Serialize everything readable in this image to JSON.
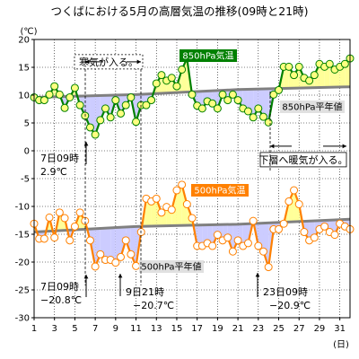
{
  "chart_data": {
    "type": "line",
    "title": "つくばにおける5月の高層気温の推移(09時と21時)",
    "yunit": "(℃)",
    "xunit": "(日)",
    "xlim": [
      1,
      32
    ],
    "ylim": [
      -30,
      20
    ],
    "xticks": [
      1,
      3,
      5,
      7,
      9,
      11,
      13,
      15,
      17,
      19,
      21,
      23,
      25,
      27,
      29,
      31
    ],
    "yticks": [
      20,
      15,
      10,
      5,
      0,
      -5,
      -10,
      -15,
      -20,
      -25,
      -30
    ],
    "grid": true,
    "series": [
      {
        "name": "850hPa気温",
        "color": "#008000",
        "marker_color": "#ffff80",
        "normal_name": "850hPa平年値",
        "normal": [
          [
            1,
            9.6
          ],
          [
            11,
            10.1
          ],
          [
            21,
            11.0
          ],
          [
            32,
            11.5
          ]
        ],
        "values": [
          [
            1,
            9.6
          ],
          [
            1.5,
            9.1
          ],
          [
            2,
            9.1
          ],
          [
            2.5,
            10.1
          ],
          [
            3,
            11.6
          ],
          [
            3.5,
            10.1
          ],
          [
            4,
            7.7
          ],
          [
            4.5,
            9.6
          ],
          [
            5,
            11.3
          ],
          [
            5.5,
            8.2
          ],
          [
            6,
            6.3
          ],
          [
            6.5,
            4.2
          ],
          [
            7,
            2.9
          ],
          [
            7.5,
            5.5
          ],
          [
            8,
            7.6
          ],
          [
            8.5,
            6.0
          ],
          [
            9,
            9.1
          ],
          [
            9.5,
            6.7
          ],
          [
            10,
            8.2
          ],
          [
            10.5,
            9.6
          ],
          [
            11,
            5.2
          ],
          [
            11.5,
            8.2
          ],
          [
            12,
            8.2
          ],
          [
            12.5,
            9.1
          ],
          [
            13,
            12.1
          ],
          [
            13.5,
            13.6
          ],
          [
            14,
            12.6
          ],
          [
            14.5,
            13.1
          ],
          [
            15,
            11.6
          ],
          [
            15.5,
            14.6
          ],
          [
            16,
            16.6
          ],
          [
            16.5,
            10.1
          ],
          [
            17,
            8.1
          ],
          [
            17.5,
            7.6
          ],
          [
            18,
            8.9
          ],
          [
            18.5,
            8.5
          ],
          [
            19,
            7.6
          ],
          [
            19.5,
            10.1
          ],
          [
            20,
            9.1
          ],
          [
            20.5,
            10.1
          ],
          [
            21,
            9.1
          ],
          [
            21.5,
            7.6
          ],
          [
            22,
            7.1
          ],
          [
            22.5,
            6.0
          ],
          [
            23,
            7.6
          ],
          [
            23.5,
            6.1
          ],
          [
            24,
            5.1
          ],
          [
            24.5,
            10.1
          ],
          [
            25,
            10.9
          ],
          [
            25.5,
            15.1
          ],
          [
            26,
            15.1
          ],
          [
            26.5,
            13.6
          ],
          [
            27,
            15.1
          ],
          [
            27.5,
            13.1
          ],
          [
            28,
            12.6
          ],
          [
            28.5,
            13.6
          ],
          [
            29,
            15.6
          ],
          [
            29.5,
            15.1
          ],
          [
            30,
            15.6
          ],
          [
            30.5,
            14.6
          ],
          [
            31,
            15.1
          ],
          [
            31.5,
            15.6
          ],
          [
            32,
            16.6
          ]
        ]
      },
      {
        "name": "500hPa気温",
        "color": "#ff8000",
        "marker_color": "#ffffff",
        "normal_name": "500hPa平年値",
        "normal": [
          [
            1,
            -14.6
          ],
          [
            11,
            -13.6
          ],
          [
            21,
            -13.2
          ],
          [
            32,
            -12.3
          ]
        ],
        "values": [
          [
            1,
            -13.1
          ],
          [
            1.5,
            -15.8
          ],
          [
            2,
            -15.8
          ],
          [
            2.5,
            -12.0
          ],
          [
            3,
            -15.6
          ],
          [
            3.5,
            -11.1
          ],
          [
            4,
            -12.1
          ],
          [
            4.5,
            -16.1
          ],
          [
            5,
            -13.6
          ],
          [
            5.5,
            -11.1
          ],
          [
            6,
            -12.6
          ],
          [
            6.5,
            -16.1
          ],
          [
            7,
            -20.8
          ],
          [
            7.5,
            -18.6
          ],
          [
            8,
            -19.6
          ],
          [
            8.5,
            -19.6
          ],
          [
            9,
            -20.1
          ],
          [
            9.5,
            -19.1
          ],
          [
            10,
            -16.1
          ],
          [
            10.5,
            -18.6
          ],
          [
            11,
            -20.7
          ],
          [
            11.5,
            -14.6
          ],
          [
            12,
            -8.6
          ],
          [
            12.5,
            -9.1
          ],
          [
            13,
            -8.6
          ],
          [
            13.5,
            -11.1
          ],
          [
            14,
            -10.1
          ],
          [
            14.5,
            -10.6
          ],
          [
            15,
            -7.1
          ],
          [
            15.5,
            -6.1
          ],
          [
            16,
            -9.6
          ],
          [
            16.5,
            -12.1
          ],
          [
            17,
            -17.1
          ],
          [
            17.5,
            -17.1
          ],
          [
            18,
            -16.6
          ],
          [
            18.5,
            -17.1
          ],
          [
            19,
            -15.1
          ],
          [
            19.5,
            -16.1
          ],
          [
            20,
            -15.6
          ],
          [
            20.5,
            -18.1
          ],
          [
            21,
            -16.1
          ],
          [
            21.5,
            -17.1
          ],
          [
            22,
            -16.6
          ],
          [
            22.5,
            -12.6
          ],
          [
            23,
            -17.1
          ],
          [
            23.5,
            -18.1
          ],
          [
            24,
            -20.9
          ],
          [
            24.5,
            -14.1
          ],
          [
            25,
            -14.1
          ],
          [
            25.5,
            -13.1
          ],
          [
            26,
            -9.1
          ],
          [
            26.5,
            -7.1
          ],
          [
            27,
            -9.6
          ],
          [
            27.5,
            -14.6
          ],
          [
            28,
            -16.1
          ],
          [
            28.5,
            -15.6
          ],
          [
            29,
            -14.1
          ],
          [
            29.5,
            -13.6
          ],
          [
            30,
            -14.6
          ],
          [
            30.5,
            -15.1
          ],
          [
            31,
            -13.1
          ],
          [
            31.5,
            -13.6
          ],
          [
            32,
            -14.1
          ]
        ]
      }
    ],
    "legend": [
      {
        "text": "850hPa気温",
        "fill": "#008000",
        "text_color": "#ffffff"
      },
      {
        "text": "850hPa平年値",
        "fill": "#e0e0e0",
        "text_color": "#000000"
      },
      {
        "text": "500hPa気温",
        "fill": "#ff8000",
        "text_color": "#ffffff"
      },
      {
        "text": "500hPa平年値",
        "fill": "#e0e0e0",
        "text_color": "#000000"
      }
    ],
    "annotations": [
      {
        "text": "寒気が入る。",
        "type": "range",
        "x_from": 6.5,
        "x_to": 11.5,
        "y": 15.5
      },
      {
        "text": "下層へ暖気が入る。",
        "type": "range",
        "x_from": 25,
        "x_to": 32,
        "y": 0.5
      },
      {
        "text": "7日09時",
        "x": 7,
        "y": 2.9
      },
      {
        "text": "2.9℃",
        "x": 7,
        "y": 2.9
      },
      {
        "text": "7日09時",
        "x": 7,
        "y": -20.8
      },
      {
        "text": "−20.8℃",
        "x": 7,
        "y": -20.8
      },
      {
        "text": "9日21時",
        "x": 11,
        "y": -20.7
      },
      {
        "text": "−20.7℃",
        "x": 11,
        "y": -20.7
      },
      {
        "text": "23日09時",
        "x": 24,
        "y": -20.9
      },
      {
        "text": "−20.9℃",
        "x": 24,
        "y": -20.9
      }
    ]
  }
}
